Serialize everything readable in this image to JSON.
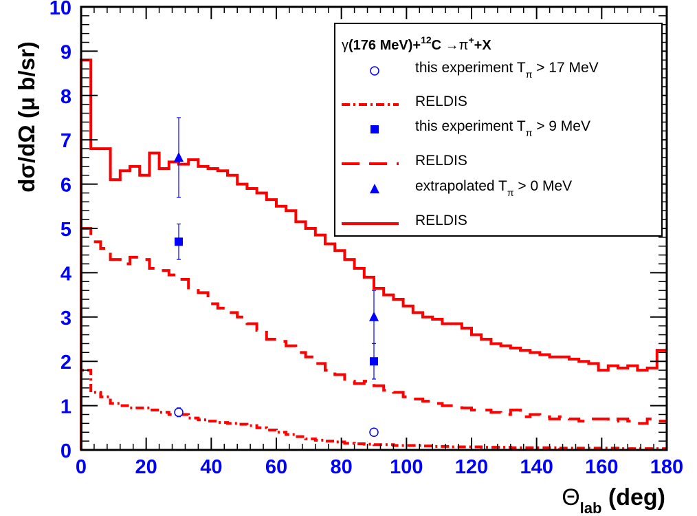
{
  "chart_data": {
    "type": "line",
    "xlabel": "(deg)",
    "xlabel_symbol": "Θ",
    "xlabel_sub": "lab",
    "ylabel": "dσ/dΩ  (μ b/sr)",
    "xlim": [
      0,
      180
    ],
    "ylim": [
      0,
      10
    ],
    "xticks": [
      0,
      20,
      40,
      60,
      80,
      100,
      120,
      140,
      160,
      180
    ],
    "yticks": [
      0,
      1,
      2,
      3,
      4,
      5,
      6,
      7,
      8,
      9,
      10
    ],
    "legend_placement": "top-right",
    "legend_title": "γ(176 MeV)+12C → π++X",
    "legend": [
      {
        "marker": "open-circle",
        "text": "this experiment Tπ > 17 MeV"
      },
      {
        "line": "dash-dot",
        "text": "RELDIS"
      },
      {
        "marker": "filled-square",
        "text": "this experiment Tπ > 9 MeV"
      },
      {
        "line": "long-dash",
        "text": "RELDIS"
      },
      {
        "marker": "filled-triangle",
        "text": "extrapolated Tπ > 0 MeV"
      },
      {
        "line": "solid",
        "text": "RELDIS"
      }
    ],
    "colors": {
      "axis_text": "#0000ff",
      "model": "#ff0000",
      "data": "#0000ff",
      "frame": "#000000"
    },
    "bin_width": 3,
    "series": [
      {
        "name": "RELDIS",
        "style": "solid",
        "values": [
          8.8,
          6.8,
          6.8,
          6.1,
          6.3,
          6.4,
          6.2,
          6.7,
          6.35,
          6.5,
          6.45,
          6.55,
          6.4,
          6.35,
          6.3,
          6.2,
          6.0,
          5.9,
          5.8,
          5.65,
          5.5,
          5.4,
          5.15,
          5.0,
          4.85,
          4.65,
          4.5,
          4.3,
          4.1,
          3.9,
          3.65,
          3.5,
          3.4,
          3.25,
          3.1,
          3.0,
          2.95,
          2.85,
          2.85,
          2.75,
          2.6,
          2.5,
          2.4,
          2.35,
          2.3,
          2.25,
          2.2,
          2.15,
          2.1,
          2.1,
          2.05,
          2.0,
          1.95,
          1.8,
          1.9,
          1.85,
          1.9,
          1.8,
          1.85,
          2.25
        ]
      },
      {
        "name": "RELDIS",
        "style": "long-dash",
        "values": [
          5.0,
          4.7,
          4.55,
          4.3,
          4.2,
          4.35,
          4.3,
          4.1,
          4.05,
          3.95,
          3.85,
          3.6,
          3.55,
          3.3,
          3.2,
          3.1,
          3.0,
          2.85,
          2.7,
          2.5,
          2.45,
          2.35,
          2.2,
          2.1,
          1.95,
          1.8,
          1.7,
          1.55,
          1.5,
          1.55,
          1.45,
          1.35,
          1.3,
          1.2,
          1.15,
          1.1,
          1.05,
          1.0,
          1.0,
          0.95,
          0.9,
          0.9,
          0.85,
          0.8,
          0.9,
          0.75,
          0.8,
          0.75,
          0.7,
          0.75,
          0.7,
          0.65,
          0.7,
          0.7,
          0.65,
          0.7,
          0.65,
          0.6,
          0.7,
          0.65
        ]
      },
      {
        "name": "RELDIS",
        "style": "dash-dot",
        "values": [
          1.8,
          1.3,
          1.2,
          1.05,
          1.0,
          0.95,
          0.95,
          0.9,
          0.85,
          0.8,
          0.8,
          0.72,
          0.68,
          0.65,
          0.62,
          0.6,
          0.58,
          0.55,
          0.5,
          0.45,
          0.4,
          0.35,
          0.3,
          0.25,
          0.22,
          0.2,
          0.18,
          0.15,
          0.14,
          0.13,
          0.12,
          0.12,
          0.1,
          0.1,
          0.1,
          0.09,
          0.08,
          0.08,
          0.07,
          0.07,
          0.07,
          0.06,
          0.06,
          0.06,
          0.05,
          0.05,
          0.05,
          0.05,
          0.05,
          0.04,
          0.04,
          0.04,
          0.04,
          0.04,
          0.04,
          0.03,
          0.03,
          0.03,
          0.03,
          0.03
        ]
      }
    ],
    "points": [
      {
        "name": "this experiment Tπ > 17 MeV",
        "marker": "open-circle",
        "data": [
          {
            "x": 30,
            "y": 0.85,
            "err": 0.1
          },
          {
            "x": 90,
            "y": 0.4,
            "err": 0
          }
        ]
      },
      {
        "name": "this experiment Tπ > 9 MeV",
        "marker": "filled-square",
        "data": [
          {
            "x": 30,
            "y": 4.7,
            "err": 0.4
          },
          {
            "x": 90,
            "y": 2.0,
            "err": 0.4
          }
        ]
      },
      {
        "name": "extrapolated Tπ > 0 MeV",
        "marker": "filled-triangle",
        "data": [
          {
            "x": 30,
            "y": 6.6,
            "err": 0.9
          },
          {
            "x": 90,
            "y": 3.0,
            "err": 0.6
          }
        ]
      }
    ]
  }
}
